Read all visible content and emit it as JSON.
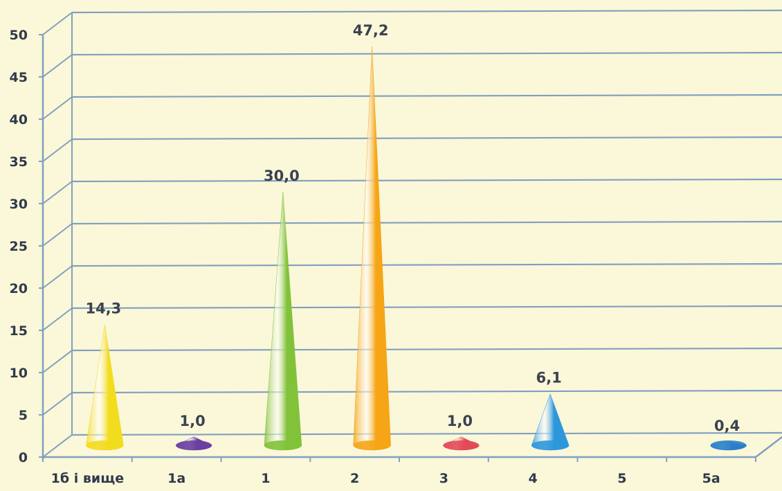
{
  "chart_data": {
    "type": "bar",
    "shape": "cone-3d",
    "categories": [
      "1б і вище",
      "1а",
      "1",
      "2",
      "3",
      "4",
      "5",
      "5а"
    ],
    "values": [
      14.3,
      1.0,
      30.0,
      47.2,
      1.0,
      6.1,
      0,
      0.4
    ],
    "data_labels": [
      "14,3",
      "1,0",
      "30,0",
      "47,2",
      "1,0",
      "6,1",
      "",
      "0,4"
    ],
    "colors": [
      "#f2dc1e",
      "#6a3fa0",
      "#82c23a",
      "#f5a516",
      "#e24a58",
      "#2e97dc",
      "#2e97dc",
      "#2a7fc8"
    ],
    "yticks": [
      "0",
      "5",
      "10",
      "15",
      "20",
      "25",
      "30",
      "35",
      "40",
      "45",
      "50"
    ],
    "ylim": [
      0,
      50
    ],
    "grid": true,
    "title": "",
    "xlabel": "",
    "ylabel": "",
    "background": "#fbf7d9",
    "grid_color": "#7fa0be"
  }
}
